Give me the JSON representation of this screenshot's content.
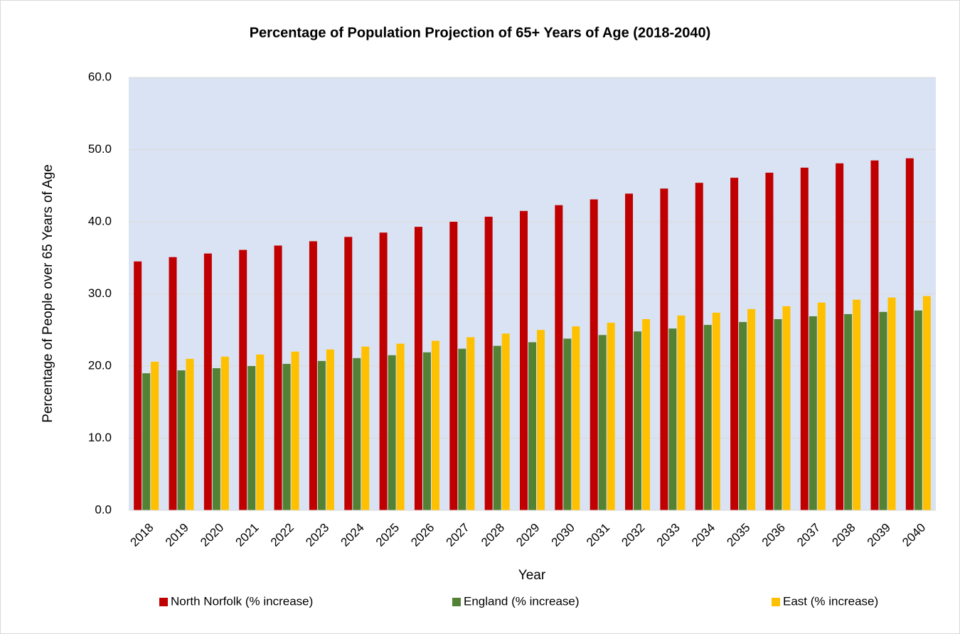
{
  "chart_data": {
    "type": "bar",
    "title": "Percentage of Population Projection of 65+ Years of Age (2018-2040)",
    "x_label": "Year",
    "y_label": "Percentage of People over 65 Years of Age",
    "categories": [
      "2018",
      "2019",
      "2020",
      "2021",
      "2022",
      "2023",
      "2024",
      "2025",
      "2026",
      "2027",
      "2028",
      "2029",
      "2030",
      "2031",
      "2032",
      "2033",
      "2034",
      "2035",
      "2036",
      "2037",
      "2038",
      "2039",
      "2040"
    ],
    "series": [
      {
        "name": "North Norfolk (% increase)",
        "color": "#c00000",
        "values": [
          34.5,
          35.1,
          35.6,
          36.1,
          36.7,
          37.3,
          37.9,
          38.5,
          39.3,
          40.0,
          40.7,
          41.5,
          42.3,
          43.1,
          43.9,
          44.6,
          45.4,
          46.1,
          46.8,
          47.5,
          48.1,
          48.5,
          48.8
        ]
      },
      {
        "name": "England (% increase)",
        "color": "#548235",
        "values": [
          19.0,
          19.4,
          19.7,
          20.0,
          20.3,
          20.7,
          21.1,
          21.5,
          21.9,
          22.4,
          22.8,
          23.3,
          23.8,
          24.3,
          24.8,
          25.2,
          25.7,
          26.1,
          26.5,
          26.9,
          27.2,
          27.5,
          27.7
        ]
      },
      {
        "name": "East (% increase)",
        "color": "#ffc000",
        "values": [
          20.6,
          21.0,
          21.3,
          21.6,
          22.0,
          22.3,
          22.7,
          23.1,
          23.5,
          24.0,
          24.5,
          25.0,
          25.5,
          26.0,
          26.5,
          27.0,
          27.4,
          27.9,
          28.3,
          28.8,
          29.2,
          29.5,
          29.7
        ]
      }
    ],
    "ylim": [
      0,
      60
    ],
    "yticks": [
      {
        "value": 0,
        "label": "0.0"
      },
      {
        "value": 10,
        "label": "10.0"
      },
      {
        "value": 20,
        "label": "20.0"
      },
      {
        "value": 30,
        "label": "30.0"
      },
      {
        "value": 40,
        "label": "40.0"
      },
      {
        "value": 50,
        "label": "50.0"
      },
      {
        "value": 60,
        "label": "60.0"
      }
    ],
    "grid": true,
    "legend": "bottom",
    "plot_background": "#dae3f3"
  }
}
